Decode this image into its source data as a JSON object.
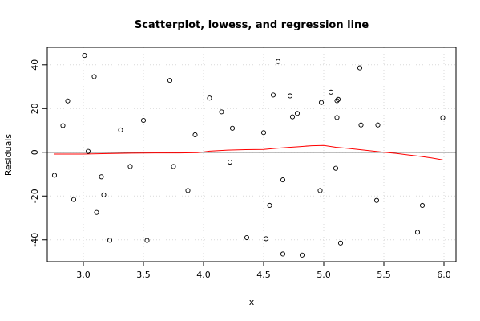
{
  "chart_data": {
    "type": "scatter",
    "title": "Scatterplot, lowess, and regression line",
    "xlabel": "x",
    "ylabel": "Residuals",
    "xlim": [
      2.7,
      6.1
    ],
    "ylim": [
      -50,
      48
    ],
    "x_ticks": [
      3.0,
      3.5,
      4.0,
      4.5,
      5.0,
      5.5,
      6.0
    ],
    "x_tick_labels": [
      "3.0",
      "3.5",
      "4.0",
      "4.5",
      "5.0",
      "5.5",
      "6.0"
    ],
    "y_ticks": [
      -40,
      -20,
      0,
      20,
      40
    ],
    "y_tick_labels": [
      "-40",
      "-20",
      "0",
      "20",
      "40"
    ],
    "grid": true,
    "points": [
      {
        "x": 2.76,
        "y": -10.5
      },
      {
        "x": 2.83,
        "y": 12.2
      },
      {
        "x": 2.87,
        "y": 23.5
      },
      {
        "x": 2.92,
        "y": -21.6
      },
      {
        "x": 3.01,
        "y": 44.3
      },
      {
        "x": 3.04,
        "y": 0.4
      },
      {
        "x": 3.09,
        "y": 34.6
      },
      {
        "x": 3.11,
        "y": -27.5
      },
      {
        "x": 3.15,
        "y": -11.2
      },
      {
        "x": 3.17,
        "y": -19.5
      },
      {
        "x": 3.22,
        "y": -40.2
      },
      {
        "x": 3.31,
        "y": 10.2
      },
      {
        "x": 3.39,
        "y": -6.5
      },
      {
        "x": 3.5,
        "y": 14.6
      },
      {
        "x": 3.53,
        "y": -40.3
      },
      {
        "x": 3.72,
        "y": 32.9
      },
      {
        "x": 3.75,
        "y": -6.5
      },
      {
        "x": 3.87,
        "y": -17.5
      },
      {
        "x": 3.93,
        "y": 8.0
      },
      {
        "x": 4.05,
        "y": 24.8
      },
      {
        "x": 4.15,
        "y": 18.5
      },
      {
        "x": 4.22,
        "y": -4.5
      },
      {
        "x": 4.24,
        "y": 11.0
      },
      {
        "x": 4.36,
        "y": -39.0
      },
      {
        "x": 4.5,
        "y": 9.0
      },
      {
        "x": 4.52,
        "y": -39.5
      },
      {
        "x": 4.55,
        "y": -24.3
      },
      {
        "x": 4.58,
        "y": 26.2
      },
      {
        "x": 4.62,
        "y": 41.5
      },
      {
        "x": 4.66,
        "y": -12.6
      },
      {
        "x": 4.66,
        "y": -46.5
      },
      {
        "x": 4.72,
        "y": 25.8
      },
      {
        "x": 4.74,
        "y": 16.2
      },
      {
        "x": 4.78,
        "y": 17.8
      },
      {
        "x": 4.82,
        "y": -47.0
      },
      {
        "x": 4.97,
        "y": -17.5
      },
      {
        "x": 4.98,
        "y": 22.8
      },
      {
        "x": 5.06,
        "y": 27.5
      },
      {
        "x": 5.1,
        "y": -7.3
      },
      {
        "x": 5.11,
        "y": 23.6
      },
      {
        "x": 5.12,
        "y": 24.2
      },
      {
        "x": 5.11,
        "y": 15.9
      },
      {
        "x": 5.14,
        "y": -41.5
      },
      {
        "x": 5.3,
        "y": 38.6
      },
      {
        "x": 5.31,
        "y": 12.5
      },
      {
        "x": 5.44,
        "y": -22.0
      },
      {
        "x": 5.45,
        "y": 12.5
      },
      {
        "x": 5.78,
        "y": -36.5
      },
      {
        "x": 5.82,
        "y": -24.3
      },
      {
        "x": 5.99,
        "y": 15.8
      }
    ],
    "regression_line": {
      "x": [
        2.7,
        6.1
      ],
      "y": [
        0,
        0
      ],
      "color": "#000000"
    },
    "lowess": {
      "color": "#ff0000",
      "x": [
        2.76,
        3.0,
        3.2,
        3.4,
        3.6,
        3.8,
        3.95,
        4.05,
        4.2,
        4.35,
        4.5,
        4.6,
        4.7,
        4.8,
        4.9,
        5.0,
        5.1,
        5.2,
        5.3,
        5.4,
        5.5,
        5.6,
        5.7,
        5.8,
        5.9,
        5.99
      ],
      "y": [
        -0.8,
        -0.8,
        -0.6,
        -0.4,
        -0.3,
        -0.3,
        -0.2,
        0.5,
        1.0,
        1.2,
        1.3,
        1.8,
        2.2,
        2.6,
        3.0,
        3.1,
        2.3,
        1.8,
        1.2,
        0.6,
        0.0,
        -0.5,
        -1.2,
        -1.8,
        -2.6,
        -3.5
      ]
    }
  }
}
